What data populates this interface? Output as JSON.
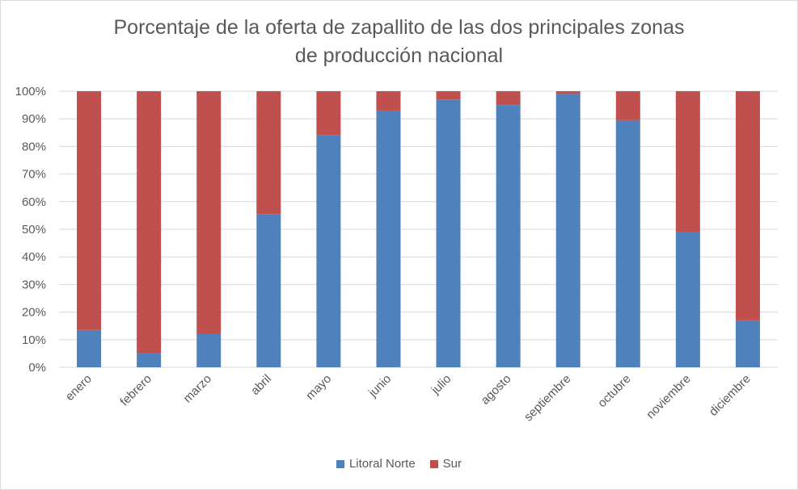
{
  "chart_data": {
    "type": "bar",
    "stacked": true,
    "title_lines": [
      "Porcentaje de la oferta de zapallito de las dos principales zonas",
      "de producción nacional"
    ],
    "categories": [
      "enero",
      "febrero",
      "marzo",
      "abril",
      "mayo",
      "junio",
      "julio",
      "agosto",
      "septiembre",
      "octubre",
      "noviembre",
      "diciembre"
    ],
    "series": [
      {
        "name": "Litoral Norte",
        "color": "#4f81bd",
        "values": [
          13.5,
          5,
          12,
          55.5,
          84,
          93,
          97,
          95,
          99,
          89.5,
          49,
          17
        ]
      },
      {
        "name": "Sur",
        "color": "#c0504d",
        "values": [
          86.5,
          95,
          88,
          44.5,
          16,
          7,
          3,
          5,
          1,
          10.5,
          51,
          83
        ]
      }
    ],
    "yticks": [
      "0%",
      "10%",
      "20%",
      "30%",
      "40%",
      "50%",
      "60%",
      "70%",
      "80%",
      "90%",
      "100%"
    ],
    "ylim": [
      0,
      100
    ],
    "xlabel": "",
    "ylabel": "",
    "grid": true,
    "legend_position": "bottom"
  }
}
